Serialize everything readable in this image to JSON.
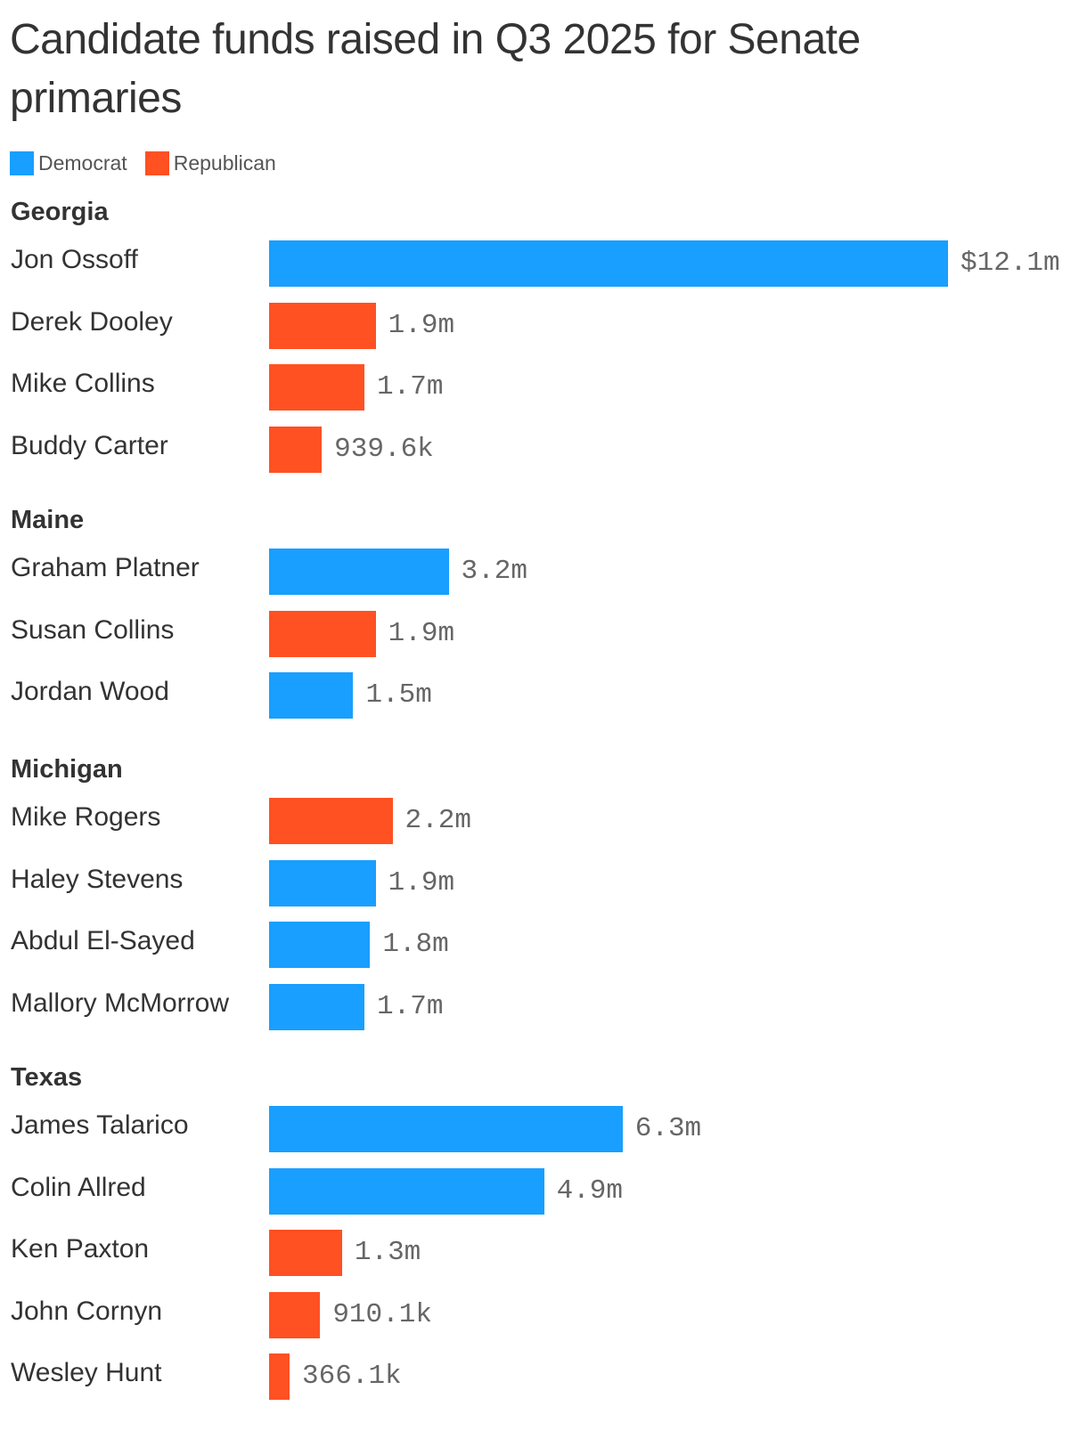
{
  "title": "Candidate funds raised in Q3 2025 for Senate primaries",
  "legend": [
    {
      "label": "Democrat",
      "color": "#189FFF"
    },
    {
      "label": "Republican",
      "color": "#FF5122"
    }
  ],
  "chart_data": {
    "type": "bar",
    "orientation": "horizontal",
    "title": "Candidate funds raised in Q3 2025 for Senate primaries",
    "xlabel": "",
    "ylabel": "",
    "unit": "USD millions",
    "grid": false,
    "legend_position": "top-left",
    "series_colors": {
      "Democrat": "#189FFF",
      "Republican": "#FF5122"
    },
    "groups": [
      {
        "name": "Georgia",
        "rows": [
          {
            "candidate": "Jon Ossoff",
            "party": "Democrat",
            "value": 12.1,
            "label": "$12.1m"
          },
          {
            "candidate": "Derek Dooley",
            "party": "Republican",
            "value": 1.9,
            "label": "1.9m"
          },
          {
            "candidate": "Mike Collins",
            "party": "Republican",
            "value": 1.7,
            "label": "1.7m"
          },
          {
            "candidate": "Buddy Carter",
            "party": "Republican",
            "value": 0.9396,
            "label": "939.6k"
          }
        ]
      },
      {
        "name": "Maine",
        "rows": [
          {
            "candidate": "Graham Platner",
            "party": "Democrat",
            "value": 3.2,
            "label": "3.2m"
          },
          {
            "candidate": "Susan Collins",
            "party": "Republican",
            "value": 1.9,
            "label": "1.9m"
          },
          {
            "candidate": "Jordan Wood",
            "party": "Democrat",
            "value": 1.5,
            "label": "1.5m"
          }
        ]
      },
      {
        "name": "Michigan",
        "rows": [
          {
            "candidate": "Mike Rogers",
            "party": "Republican",
            "value": 2.2,
            "label": "2.2m"
          },
          {
            "candidate": "Haley Stevens",
            "party": "Democrat",
            "value": 1.9,
            "label": "1.9m"
          },
          {
            "candidate": "Abdul El-Sayed",
            "party": "Democrat",
            "value": 1.8,
            "label": "1.8m"
          },
          {
            "candidate": "Mallory McMorrow",
            "party": "Democrat",
            "value": 1.7,
            "label": "1.7m"
          }
        ]
      },
      {
        "name": "Texas",
        "rows": [
          {
            "candidate": "James Talarico",
            "party": "Democrat",
            "value": 6.3,
            "label": "6.3m"
          },
          {
            "candidate": "Colin Allred",
            "party": "Democrat",
            "value": 4.9,
            "label": "4.9m"
          },
          {
            "candidate": "Ken Paxton",
            "party": "Republican",
            "value": 1.3,
            "label": "1.3m"
          },
          {
            "candidate": "John Cornyn",
            "party": "Republican",
            "value": 0.9101,
            "label": "910.1k"
          },
          {
            "candidate": "Wesley Hunt",
            "party": "Republican",
            "value": 0.3661,
            "label": "366.1k"
          }
        ]
      }
    ]
  }
}
